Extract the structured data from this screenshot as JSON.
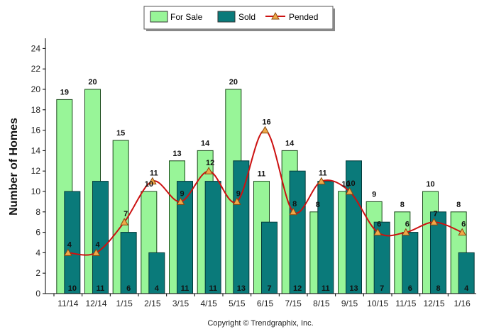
{
  "chart_data": {
    "type": "bar",
    "ylabel": "Number of Homes",
    "xlabel": "",
    "ylim": [
      0,
      25
    ],
    "yticks": [
      0,
      2,
      4,
      6,
      8,
      10,
      12,
      14,
      16,
      18,
      20,
      22,
      24
    ],
    "categories": [
      "11/14",
      "12/14",
      "1/15",
      "2/15",
      "3/15",
      "4/15",
      "5/15",
      "6/15",
      "7/15",
      "8/15",
      "9/15",
      "10/15",
      "11/15",
      "12/15",
      "1/16"
    ],
    "series": [
      {
        "name": "For Sale",
        "kind": "bar",
        "color": "#98f598",
        "values": [
          19,
          20,
          15,
          10,
          13,
          14,
          20,
          11,
          14,
          8,
          10,
          9,
          8,
          10,
          8
        ]
      },
      {
        "name": "Sold",
        "kind": "bar",
        "color": "#0a7a7a",
        "values": [
          10,
          11,
          6,
          4,
          11,
          11,
          13,
          7,
          12,
          11,
          13,
          7,
          6,
          8,
          4
        ]
      },
      {
        "name": "Pended",
        "kind": "line",
        "color": "#cc1111",
        "marker_color": "#f0a848",
        "values": [
          4,
          4,
          7,
          11,
          9,
          12,
          9,
          16,
          8,
          11,
          10,
          6,
          6,
          7,
          6
        ]
      }
    ],
    "legend_position": "top",
    "grid": false
  },
  "credit": "Copyright © Trendgraphix, Inc."
}
